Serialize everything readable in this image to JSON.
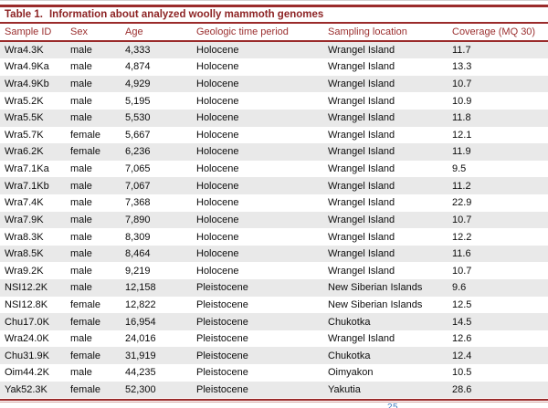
{
  "title": {
    "label": "Table 1.",
    "text": "Information about analyzed woolly mammoth genomes"
  },
  "colors": {
    "accent_red": "#9a2b2b",
    "title_red": "#8d2425",
    "header_red": "#9b2f2f",
    "stripe_gray": "#e9e9e9",
    "bottom_light_red": "#d6a5a2",
    "page_number_blue": "#3f7cc1"
  },
  "columns": [
    "Sample ID",
    "Sex",
    "Age",
    "Geologic time period",
    "Sampling location",
    "Coverage (MQ 30)"
  ],
  "rows": [
    {
      "sample_id": "Wra4.3K",
      "sex": "male",
      "age": "4,333",
      "period": "Holocene",
      "location": "Wrangel Island",
      "coverage": "11.7"
    },
    {
      "sample_id": "Wra4.9Ka",
      "sex": "male",
      "age": "4,874",
      "period": "Holocene",
      "location": "Wrangel Island",
      "coverage": "13.3"
    },
    {
      "sample_id": "Wra4.9Kb",
      "sex": "male",
      "age": "4,929",
      "period": "Holocene",
      "location": "Wrangel Island",
      "coverage": "10.7"
    },
    {
      "sample_id": "Wra5.2K",
      "sex": "male",
      "age": "5,195",
      "period": "Holocene",
      "location": "Wrangel Island",
      "coverage": "10.9"
    },
    {
      "sample_id": "Wra5.5K",
      "sex": "male",
      "age": "5,530",
      "period": "Holocene",
      "location": "Wrangel Island",
      "coverage": "11.8"
    },
    {
      "sample_id": "Wra5.7K",
      "sex": "female",
      "age": "5,667",
      "period": "Holocene",
      "location": "Wrangel Island",
      "coverage": "12.1"
    },
    {
      "sample_id": "Wra6.2K",
      "sex": "female",
      "age": "6,236",
      "period": "Holocene",
      "location": "Wrangel Island",
      "coverage": "11.9"
    },
    {
      "sample_id": "Wra7.1Ka",
      "sex": "male",
      "age": "7,065",
      "period": "Holocene",
      "location": "Wrangel Island",
      "coverage": "9.5"
    },
    {
      "sample_id": "Wra7.1Kb",
      "sex": "male",
      "age": "7,067",
      "period": "Holocene",
      "location": "Wrangel Island",
      "coverage": "11.2"
    },
    {
      "sample_id": "Wra7.4K",
      "sex": "male",
      "age": "7,368",
      "period": "Holocene",
      "location": "Wrangel Island",
      "coverage": "22.9"
    },
    {
      "sample_id": "Wra7.9K",
      "sex": "male",
      "age": "7,890",
      "period": "Holocene",
      "location": "Wrangel Island",
      "coverage": "10.7"
    },
    {
      "sample_id": "Wra8.3K",
      "sex": "male",
      "age": "8,309",
      "period": "Holocene",
      "location": "Wrangel Island",
      "coverage": "12.2"
    },
    {
      "sample_id": "Wra8.5K",
      "sex": "male",
      "age": "8,464",
      "period": "Holocene",
      "location": "Wrangel Island",
      "coverage": "11.6"
    },
    {
      "sample_id": "Wra9.2K",
      "sex": "male",
      "age": "9,219",
      "period": "Holocene",
      "location": "Wrangel Island",
      "coverage": "10.7"
    },
    {
      "sample_id": "NSI12.2K",
      "sex": "male",
      "age": "12,158",
      "period": "Pleistocene",
      "location": "New Siberian Islands",
      "coverage": "9.6"
    },
    {
      "sample_id": "NSI12.8K",
      "sex": "female",
      "age": "12,822",
      "period": "Pleistocene",
      "location": "New Siberian Islands",
      "coverage": "12.5"
    },
    {
      "sample_id": "Chu17.0K",
      "sex": "female",
      "age": "16,954",
      "period": "Pleistocene",
      "location": "Chukotka",
      "coverage": "14.5"
    },
    {
      "sample_id": "Wra24.0K",
      "sex": "male",
      "age": "24,016",
      "period": "Pleistocene",
      "location": "Wrangel Island",
      "coverage": "12.6"
    },
    {
      "sample_id": "Chu31.9K",
      "sex": "female",
      "age": "31,919",
      "period": "Pleistocene",
      "location": "Chukotka",
      "coverage": "12.4"
    },
    {
      "sample_id": "Oim44.2K",
      "sex": "male",
      "age": "44,235",
      "period": "Pleistocene",
      "location": "Oimyakon",
      "coverage": "10.5"
    },
    {
      "sample_id": "Yak52.3K",
      "sex": "female",
      "age": "52,300",
      "period": "Pleistocene",
      "location": "Yakutia",
      "coverage": "28.6"
    }
  ],
  "footer": {
    "page_number": "25"
  }
}
